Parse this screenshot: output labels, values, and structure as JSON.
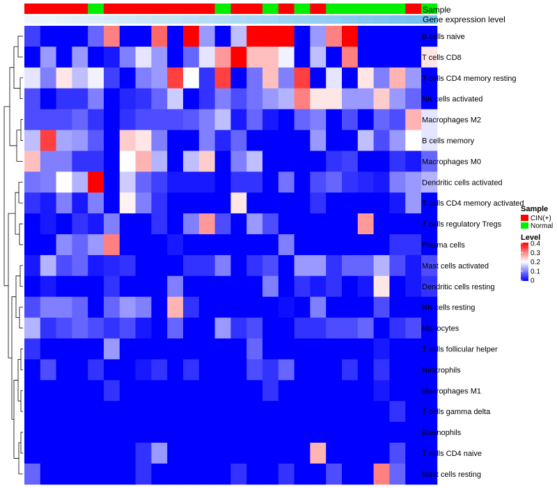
{
  "chart_data": {
    "type": "heatmap",
    "title": "",
    "annotation_labels": {
      "sample": "Sample",
      "expression": "Gene expression level"
    },
    "sample_groups": [
      "CIN(+)",
      "CIN(+)",
      "CIN(+)",
      "CIN(+)",
      "Normal",
      "CIN(+)",
      "CIN(+)",
      "CIN(+)",
      "CIN(+)",
      "CIN(+)",
      "CIN(+)",
      "CIN(+)",
      "Normal",
      "CIN(+)",
      "CIN(+)",
      "Normal",
      "CIN(+)",
      "Normal",
      "CIN(+)",
      "Normal",
      "Normal",
      "Normal",
      "Normal",
      "Normal",
      "CIN(+)",
      "Normal"
    ],
    "expression_level_trend": "increasing left to right",
    "rows": [
      "B cells naive",
      "T cells CD8",
      "T cells CD4 memory resting",
      "NK cells activated",
      "Macrophages M2",
      "B cells memory",
      "Macrophages M0",
      "Dendritic cells activated",
      "T cells CD4 memory activated",
      "T cells regulatory  Tregs",
      "Plasma cells",
      "Mast cells activated",
      "Dendritic cells resting",
      "NK cells resting",
      "Monocytes",
      "T cells follicular helper",
      "Neutrophils",
      "Macrophages M1",
      "T cells gamma delta",
      "Eosinophils",
      "T cells CD4 naive",
      "Mast cells resting"
    ],
    "values": [
      [
        0.05,
        0,
        0,
        0,
        0.08,
        0.3,
        0,
        0,
        0.32,
        0,
        0.4,
        0.12,
        0,
        0.15,
        0.4,
        0.4,
        0.4,
        0,
        0.12,
        0.3,
        0.4,
        0,
        0,
        0,
        0,
        0
      ],
      [
        0,
        0.12,
        0,
        0.12,
        0,
        0.02,
        0.1,
        0.18,
        0.12,
        0,
        0.08,
        0.18,
        0.28,
        0.4,
        0.25,
        0.25,
        0.19,
        0,
        0.15,
        0,
        0.3,
        0,
        0,
        0,
        0,
        0.22
      ],
      [
        0.18,
        0.1,
        0.22,
        0.15,
        0.19,
        0.05,
        0,
        0.1,
        0.12,
        0.35,
        0.2,
        0.04,
        0.35,
        0,
        0.09,
        0.25,
        0.1,
        0.35,
        0,
        0.18,
        0,
        0.22,
        0.1,
        0.26,
        0.12,
        0
      ],
      [
        0.06,
        0,
        0.04,
        0.04,
        0.1,
        0,
        0.03,
        0.04,
        0.08,
        0.16,
        0,
        0.04,
        0.1,
        0.06,
        0.09,
        0.12,
        0.14,
        0.3,
        0.22,
        0.22,
        0.12,
        0.12,
        0.24,
        0.12,
        0.08,
        0
      ],
      [
        0.06,
        0.06,
        0.06,
        0.08,
        0.04,
        0,
        0.04,
        0.06,
        0.06,
        0.06,
        0.07,
        0.1,
        0.15,
        0.02,
        0.08,
        0.02,
        0,
        0.08,
        0.1,
        0,
        0.06,
        0,
        0.08,
        0.06,
        0.26,
        0.18
      ],
      [
        0.15,
        0.35,
        0.13,
        0.12,
        0.07,
        0,
        0.24,
        0.22,
        0.1,
        0,
        0,
        0.1,
        0.03,
        0.08,
        0,
        0,
        0,
        0,
        0.12,
        0,
        0,
        0.15,
        0.06,
        0.12,
        0.2,
        0.18
      ],
      [
        0.25,
        0.1,
        0.1,
        0.04,
        0.04,
        0,
        0.2,
        0.26,
        0.14,
        0,
        0.15,
        0.24,
        0,
        0.1,
        0.15,
        0,
        0,
        0,
        0,
        0.04,
        0.05,
        0,
        0,
        0.04,
        0.02,
        0.08
      ],
      [
        0.09,
        0.1,
        0.2,
        0.14,
        0.4,
        0,
        0.16,
        0.08,
        0.05,
        0.02,
        0.02,
        0.02,
        0,
        0.04,
        0.04,
        0,
        0.09,
        0,
        0.06,
        0.08,
        0.04,
        0.03,
        0.02,
        0.1,
        0.12,
        0.14
      ],
      [
        0.04,
        0.02,
        0.1,
        0.02,
        0.1,
        0,
        0.21,
        0.1,
        0.04,
        0,
        0,
        0,
        0,
        0.22,
        0,
        0,
        0,
        0,
        0.04,
        0,
        0,
        0,
        0,
        0.02,
        0.12,
        0
      ],
      [
        0,
        0.02,
        0,
        0.04,
        0.02,
        0.1,
        0,
        0,
        0.04,
        0,
        0.1,
        0.28,
        0.06,
        0,
        0.12,
        0.06,
        0,
        0,
        0,
        0,
        0,
        0.28,
        0,
        0,
        0,
        0
      ],
      [
        0,
        0,
        0.11,
        0.08,
        0.12,
        0.3,
        0,
        0,
        0,
        0.02,
        0,
        0,
        0,
        0,
        0,
        0,
        0.1,
        0,
        0,
        0,
        0,
        0,
        0,
        0.04,
        0.04,
        0
      ],
      [
        0.02,
        0.14,
        0.06,
        0.08,
        0.02,
        0.03,
        0.04,
        0,
        0,
        0,
        0.04,
        0.04,
        0.1,
        0,
        0.04,
        0.06,
        0,
        0.12,
        0.12,
        0.04,
        0.08,
        0.08,
        0.14,
        0.06,
        0.02,
        0.06
      ],
      [
        0,
        0.02,
        0,
        0,
        0,
        0.04,
        0,
        0,
        0,
        0.1,
        0,
        0,
        0,
        0,
        0,
        0.1,
        0,
        0.04,
        0.02,
        0.04,
        0,
        0.02,
        0.22,
        0,
        0.02,
        0.04
      ],
      [
        0.06,
        0.1,
        0.1,
        0.08,
        0,
        0.08,
        0.12,
        0.1,
        0,
        0.26,
        0.04,
        0,
        0,
        0,
        0,
        0,
        0.01,
        0,
        0.1,
        0,
        0,
        0,
        0.06,
        0,
        0,
        0
      ],
      [
        0.14,
        0.04,
        0.06,
        0.08,
        0.06,
        0.04,
        0.06,
        0.02,
        0,
        0.08,
        0,
        0,
        0.12,
        0.04,
        0.06,
        0,
        0,
        0.04,
        0.04,
        0.06,
        0.06,
        0.08,
        0,
        0.04,
        0.06,
        0
      ],
      [
        0.04,
        0,
        0,
        0,
        0,
        0.12,
        0,
        0,
        0,
        0,
        0,
        0,
        0,
        0,
        0.08,
        0,
        0,
        0,
        0,
        0,
        0,
        0,
        0.02,
        0,
        0,
        0
      ],
      [
        0,
        0.06,
        0,
        0,
        0.04,
        0,
        0,
        0.02,
        0.04,
        0,
        0.04,
        0,
        0,
        0,
        0.06,
        0.04,
        0.08,
        0,
        0,
        0,
        0.04,
        0,
        0.04,
        0,
        0,
        0
      ],
      [
        0,
        0,
        0,
        0,
        0,
        0.04,
        0,
        0,
        0,
        0,
        0,
        0,
        0,
        0,
        0,
        0.04,
        0,
        0,
        0,
        0,
        0,
        0,
        0.02,
        0,
        0,
        0
      ],
      [
        0,
        0,
        0,
        0,
        0,
        0,
        0,
        0,
        0,
        0,
        0,
        0,
        0,
        0,
        0,
        0,
        0,
        0,
        0,
        0,
        0,
        0,
        0,
        0.04,
        0,
        0
      ],
      [
        0,
        0,
        0,
        0,
        0,
        0,
        0,
        0,
        0,
        0,
        0,
        0,
        0,
        0,
        0,
        0,
        0,
        0,
        0,
        0,
        0,
        0,
        0,
        0,
        0,
        0
      ],
      [
        0,
        0,
        0,
        0,
        0,
        0,
        0,
        0.04,
        0.12,
        0,
        0,
        0,
        0,
        0,
        0,
        0,
        0,
        0,
        0.26,
        0,
        0,
        0,
        0,
        0.06,
        0,
        0
      ],
      [
        0.08,
        0,
        0,
        0,
        0,
        0,
        0,
        0.04,
        0,
        0,
        0,
        0,
        0,
        0.04,
        0,
        0,
        0.04,
        0,
        0,
        0.06,
        0,
        0,
        0.3,
        0.08,
        0,
        0
      ]
    ],
    "legend_sample": {
      "title": "Sample",
      "entries": [
        {
          "name": "CIN(+)",
          "color": "#ff0000"
        },
        {
          "name": "Normal",
          "color": "#00ee00"
        }
      ]
    },
    "legend_level": {
      "title": "Level",
      "ticks": [
        "0.4",
        "0.3",
        "0.2",
        "0.1",
        "0"
      ]
    },
    "colorscale": {
      "low": "#0000ff",
      "mid": "#ffffff",
      "high": "#ff0000",
      "min": 0,
      "max": 0.4
    },
    "expression_colors": {
      "low": "#eef6fb",
      "high": "#6ec0f0"
    }
  }
}
